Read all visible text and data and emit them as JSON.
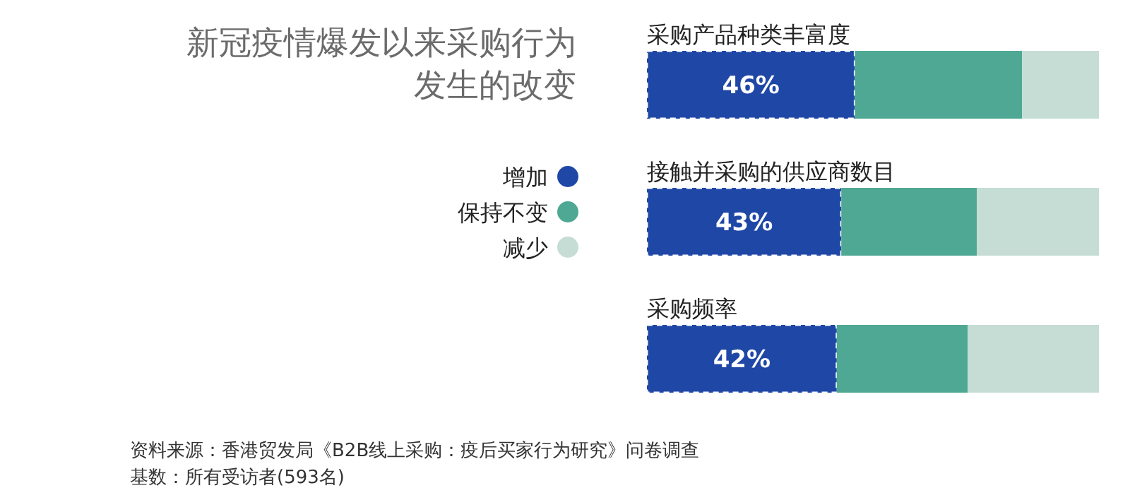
{
  "chart_data": {
    "type": "bar",
    "orientation": "horizontal",
    "stacked": true,
    "title": "新冠疫情爆发以来采购行为发生的改变",
    "categories": [
      "采购产品种类丰富度",
      "接触并采购的供应商数目",
      "采购频率"
    ],
    "series": [
      {
        "name": "增加",
        "color": "#1f47a6",
        "values": [
          46,
          43,
          42
        ],
        "value_labels": [
          "46%",
          "43%",
          "42%"
        ]
      },
      {
        "name": "保持不变",
        "color": "#4fa893",
        "values": [
          37,
          30,
          29
        ]
      },
      {
        "name": "减少",
        "color": "#c5ddd5",
        "values": [
          17,
          27,
          29
        ]
      }
    ],
    "legend": "left",
    "annotations": [
      "资料来源：香港贸发局《B2B线上采购：疫后买家行为研究》问卷调查",
      "基数：所有受访者(593名)"
    ]
  }
}
